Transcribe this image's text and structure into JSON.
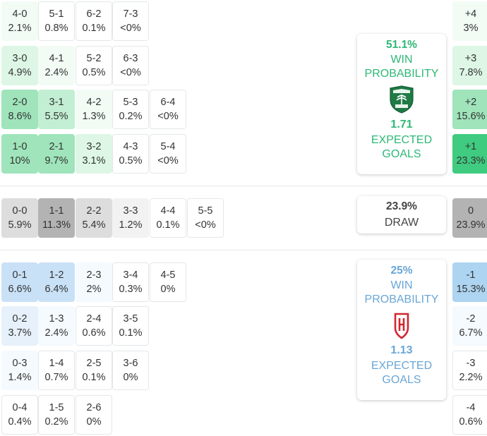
{
  "colors": {
    "home_accent": "#2eb877",
    "draw_accent": "#444444",
    "away_accent": "#6aa6d6",
    "home_shades": [
      "#ffffff",
      "#f2fcf5",
      "#ddf6e5",
      "#c2efd3",
      "#9fe4bb",
      "#3fcc80"
    ],
    "away_shades": [
      "#ffffff",
      "#f5fafe",
      "#e6f1fb",
      "#c9e1f6",
      "#add4f0"
    ],
    "draw_shades": [
      "#ffffff",
      "#f2f2f2",
      "#dddddd",
      "#b3b3b3"
    ]
  },
  "home_scores": [
    {
      "score": "4-0",
      "prob": "2.1%",
      "shade": 1
    },
    {
      "score": "5-1",
      "prob": "0.8%",
      "shade": 0
    },
    {
      "score": "6-2",
      "prob": "0.1%",
      "shade": 0
    },
    {
      "score": "7-3",
      "prob": "<0%",
      "shade": 0
    },
    {
      "score": "3-0",
      "prob": "4.9%",
      "shade": 2
    },
    {
      "score": "4-1",
      "prob": "2.4%",
      "shade": 1
    },
    {
      "score": "5-2",
      "prob": "0.5%",
      "shade": 0
    },
    {
      "score": "6-3",
      "prob": "<0%",
      "shade": 0
    },
    {
      "score": "2-0",
      "prob": "8.6%",
      "shade": 4
    },
    {
      "score": "3-1",
      "prob": "5.5%",
      "shade": 3
    },
    {
      "score": "4-2",
      "prob": "1.3%",
      "shade": 1
    },
    {
      "score": "5-3",
      "prob": "0.2%",
      "shade": 0
    },
    {
      "score": "6-4",
      "prob": "<0%",
      "shade": 0
    },
    {
      "score": "1-0",
      "prob": "10%",
      "shade": 4
    },
    {
      "score": "2-1",
      "prob": "9.7%",
      "shade": 4
    },
    {
      "score": "3-2",
      "prob": "3.1%",
      "shade": 2
    },
    {
      "score": "4-3",
      "prob": "0.5%",
      "shade": 0
    },
    {
      "score": "5-4",
      "prob": "<0%",
      "shade": 0
    }
  ],
  "draw_scores": [
    {
      "score": "0-0",
      "prob": "5.9%",
      "shade": 2
    },
    {
      "score": "1-1",
      "prob": "11.3%",
      "shade": 3
    },
    {
      "score": "2-2",
      "prob": "5.4%",
      "shade": 2
    },
    {
      "score": "3-3",
      "prob": "1.2%",
      "shade": 1
    },
    {
      "score": "4-4",
      "prob": "0.1%",
      "shade": 0
    },
    {
      "score": "5-5",
      "prob": "<0%",
      "shade": 0
    }
  ],
  "away_scores": [
    {
      "score": "0-1",
      "prob": "6.6%",
      "shade": 3
    },
    {
      "score": "1-2",
      "prob": "6.4%",
      "shade": 3
    },
    {
      "score": "2-3",
      "prob": "2%",
      "shade": 1
    },
    {
      "score": "3-4",
      "prob": "0.3%",
      "shade": 0
    },
    {
      "score": "4-5",
      "prob": "0%",
      "shade": 0
    },
    {
      "score": "0-2",
      "prob": "3.7%",
      "shade": 2
    },
    {
      "score": "1-3",
      "prob": "2.4%",
      "shade": 1
    },
    {
      "score": "2-4",
      "prob": "0.6%",
      "shade": 0
    },
    {
      "score": "3-5",
      "prob": "0.1%",
      "shade": 0
    },
    {
      "score": "0-3",
      "prob": "1.4%",
      "shade": 1
    },
    {
      "score": "1-4",
      "prob": "0.7%",
      "shade": 0
    },
    {
      "score": "2-5",
      "prob": "0.1%",
      "shade": 0
    },
    {
      "score": "3-6",
      "prob": "0%",
      "shade": 0
    },
    {
      "score": "0-4",
      "prob": "0.4%",
      "shade": 0
    },
    {
      "score": "1-5",
      "prob": "0.2%",
      "shade": 0
    },
    {
      "score": "2-6",
      "prob": "0%",
      "shade": 0
    }
  ],
  "home_margins": [
    {
      "margin": "+4",
      "prob": "3%",
      "shade": 1
    },
    {
      "margin": "+3",
      "prob": "7.8%",
      "shade": 2
    },
    {
      "margin": "+2",
      "prob": "15.6%",
      "shade": 4
    },
    {
      "margin": "+1",
      "prob": "23.3%",
      "shade": 5
    }
  ],
  "draw_margin": {
    "margin": "0",
    "prob": "23.9%",
    "shade": 3
  },
  "away_margins": [
    {
      "margin": "-1",
      "prob": "15.3%",
      "shade": 4
    },
    {
      "margin": "-2",
      "prob": "6.7%",
      "shade": 1
    },
    {
      "margin": "-3",
      "prob": "2.2%",
      "shade": 0
    },
    {
      "margin": "-4",
      "prob": "0.6%",
      "shade": 0
    }
  ],
  "home_summary": {
    "win_pct": "51.1%",
    "win_label_1": "WIN",
    "win_label_2": "PROBABILITY",
    "xg": "1.71",
    "xg_label_1": "EXPECTED",
    "xg_label_2": "GOALS",
    "crest_icon": "home-crest-icon"
  },
  "draw_summary": {
    "pct": "23.9%",
    "label": "DRAW"
  },
  "away_summary": {
    "win_pct": "25%",
    "win_label_1": "WIN",
    "win_label_2": "PROBABILITY",
    "xg": "1.13",
    "xg_label_1": "EXPECTED",
    "xg_label_2": "GOALS",
    "crest_icon": "away-crest-icon"
  }
}
